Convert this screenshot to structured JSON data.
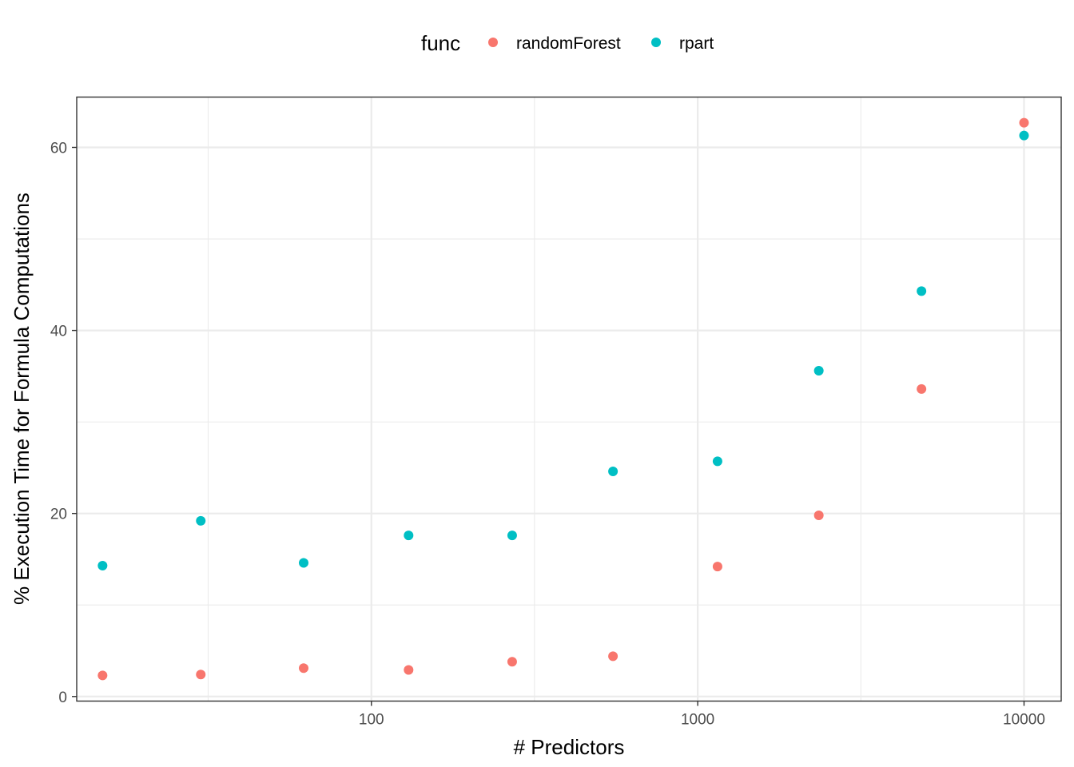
{
  "chart_data": {
    "type": "scatter",
    "xlabel": "# Predictors",
    "ylabel": "% Execution Time for Formula Computations",
    "xscale": "log10",
    "xlim": [
      12.5,
      13000
    ],
    "ylim": [
      -0.5,
      65.5
    ],
    "x_major_ticks": [
      100,
      1000,
      10000
    ],
    "x_major_tick_labels": [
      "100",
      "1000",
      "10000"
    ],
    "x_minor_ticks": [
      31.6,
      316,
      3162
    ],
    "y_major_ticks": [
      0,
      20,
      40,
      60
    ],
    "y_major_tick_labels": [
      "0",
      "20",
      "40",
      "60"
    ],
    "y_minor_ticks": [
      10,
      30,
      50
    ],
    "grid": true,
    "legend": {
      "title": "func",
      "position": "top",
      "entries": [
        "randomForest",
        "rpart"
      ]
    },
    "series": [
      {
        "name": "randomForest",
        "color": "#F8766D",
        "points": [
          {
            "x": 15,
            "y": 2.3
          },
          {
            "x": 30,
            "y": 2.4
          },
          {
            "x": 62,
            "y": 3.1
          },
          {
            "x": 130,
            "y": 2.9
          },
          {
            "x": 270,
            "y": 3.8
          },
          {
            "x": 550,
            "y": 4.4
          },
          {
            "x": 1150,
            "y": 14.2
          },
          {
            "x": 2350,
            "y": 19.8
          },
          {
            "x": 4850,
            "y": 33.6
          },
          {
            "x": 10000,
            "y": 62.7
          }
        ]
      },
      {
        "name": "rpart",
        "color": "#00BFC4",
        "points": [
          {
            "x": 15,
            "y": 14.3
          },
          {
            "x": 30,
            "y": 19.2
          },
          {
            "x": 62,
            "y": 14.6
          },
          {
            "x": 130,
            "y": 17.6
          },
          {
            "x": 270,
            "y": 17.6
          },
          {
            "x": 550,
            "y": 24.6
          },
          {
            "x": 1150,
            "y": 25.7
          },
          {
            "x": 2350,
            "y": 35.6
          },
          {
            "x": 4850,
            "y": 44.3
          },
          {
            "x": 10000,
            "y": 61.3
          }
        ]
      }
    ]
  }
}
